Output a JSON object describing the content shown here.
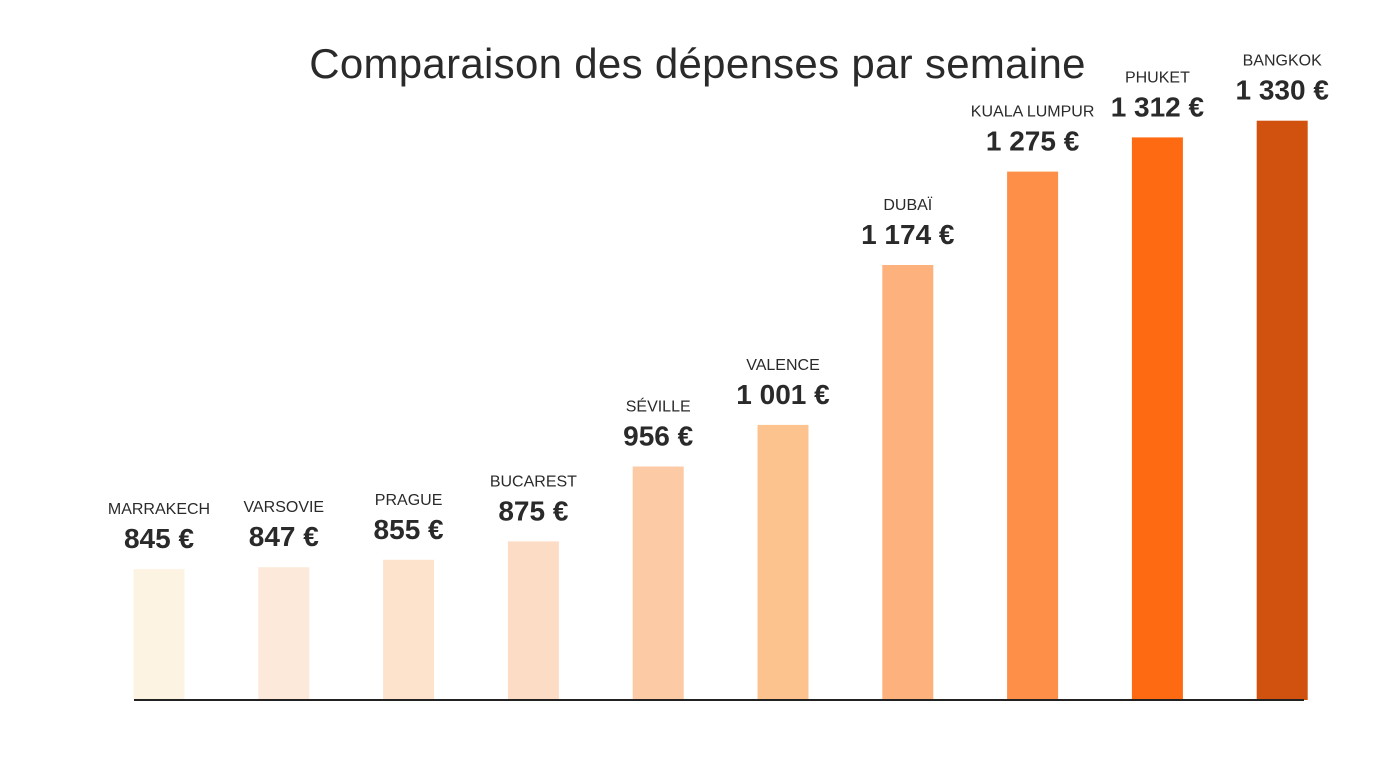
{
  "chart_data": {
    "type": "bar",
    "title": "Comparaison des dépenses par semaine",
    "xlabel": "",
    "ylabel": "",
    "categories": [
      "MARRAKECH",
      "VARSOVIE",
      "PRAGUE",
      "BUCAREST",
      "SÉVILLE",
      "VALENCE",
      "DUBAÏ",
      "KUALA LUMPUR",
      "PHUKET",
      "BANGKOK"
    ],
    "values": [
      845,
      847,
      855,
      875,
      956,
      1001,
      1174,
      1275,
      1312,
      1330
    ],
    "value_labels": [
      "845 €",
      "847 €",
      "855 €",
      "875 €",
      "956 €",
      "1 001 €",
      "1 174 €",
      "1 275 €",
      "1 312 €",
      "1 330 €"
    ],
    "colors": [
      "#fdf3e3",
      "#fde9d9",
      "#fde3cc",
      "#fddcc6",
      "#fccaa4",
      "#fdc38f",
      "#fdb27e",
      "#fd8f48",
      "#fd6a12",
      "#d1520e"
    ],
    "axis_color": "#222222",
    "grid": false,
    "legend": "none"
  }
}
